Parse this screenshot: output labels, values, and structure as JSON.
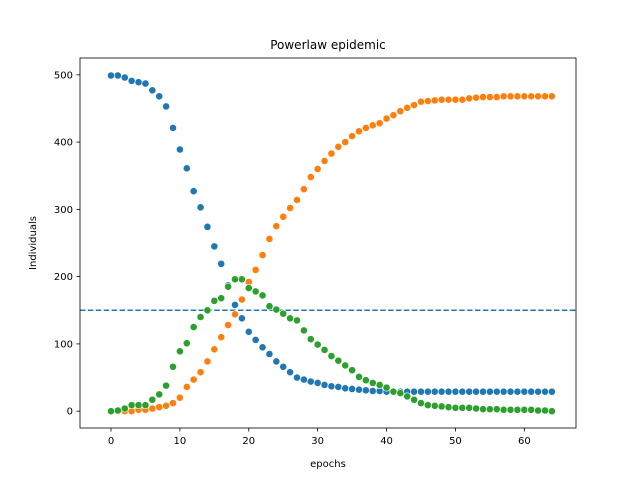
{
  "chart_data": {
    "type": "scatter",
    "title": "Powerlaw epidemic",
    "xlabel": "epochs",
    "ylabel": "Individuals",
    "xlim": [
      -4.5,
      67.5
    ],
    "ylim": [
      -25,
      525
    ],
    "xticks": [
      0,
      10,
      20,
      30,
      40,
      50,
      60
    ],
    "yticks": [
      0,
      100,
      200,
      300,
      400,
      500
    ],
    "grid": false,
    "legend": "none",
    "reference_line": {
      "y": 150,
      "style": "dashed",
      "color": "#1f77b4"
    },
    "x": [
      0,
      1,
      2,
      3,
      4,
      5,
      6,
      7,
      8,
      9,
      10,
      11,
      12,
      13,
      14,
      15,
      16,
      17,
      18,
      19,
      20,
      21,
      22,
      23,
      24,
      25,
      26,
      27,
      28,
      29,
      30,
      31,
      32,
      33,
      34,
      35,
      36,
      37,
      38,
      39,
      40,
      41,
      42,
      43,
      44,
      45,
      46,
      47,
      48,
      49,
      50,
      51,
      52,
      53,
      54,
      55,
      56,
      57,
      58,
      59,
      60,
      61,
      62,
      63,
      64
    ],
    "series": [
      {
        "color": "#1f77b4",
        "values": [
          499,
          499,
          496,
          491,
          489,
          487,
          477,
          468,
          453,
          421,
          389,
          361,
          327,
          303,
          274,
          245,
          219,
          187,
          158,
          138,
          118,
          106,
          95,
          85,
          74,
          66,
          58,
          50,
          47,
          44,
          42,
          39,
          37,
          36,
          34,
          33,
          32,
          31,
          30,
          30,
          29,
          29,
          29,
          29,
          29,
          29,
          29,
          29,
          29,
          29,
          29,
          29,
          29,
          29,
          29,
          29,
          29,
          29,
          29,
          29,
          29,
          29,
          29,
          29,
          29
        ]
      },
      {
        "color": "#ff7f0e",
        "values": [
          0,
          0,
          0,
          0,
          2,
          2,
          4,
          6,
          8,
          12,
          20,
          36,
          47,
          58,
          74,
          92,
          110,
          128,
          144,
          166,
          192,
          210,
          232,
          256,
          275,
          289,
          302,
          314,
          330,
          348,
          360,
          372,
          383,
          393,
          400,
          409,
          416,
          421,
          425,
          428,
          435,
          440,
          446,
          451,
          455,
          460,
          461,
          462,
          463,
          463,
          463,
          463,
          465,
          466,
          467,
          467,
          467,
          468,
          468,
          468,
          468,
          468,
          468,
          468,
          468
        ]
      },
      {
        "color": "#2ca02c",
        "values": [
          0,
          1,
          4,
          9,
          9,
          9,
          17,
          25,
          38,
          66,
          89,
          101,
          125,
          140,
          150,
          164,
          168,
          185,
          196,
          196,
          183,
          178,
          172,
          156,
          151,
          145,
          138,
          135,
          120,
          107,
          99,
          91,
          82,
          75,
          68,
          61,
          51,
          46,
          42,
          39,
          35,
          29,
          27,
          22,
          17,
          12,
          9,
          8,
          7,
          6,
          5,
          5,
          5,
          4,
          3,
          3,
          3,
          2,
          2,
          2,
          2,
          2,
          1,
          1,
          0
        ]
      }
    ]
  }
}
